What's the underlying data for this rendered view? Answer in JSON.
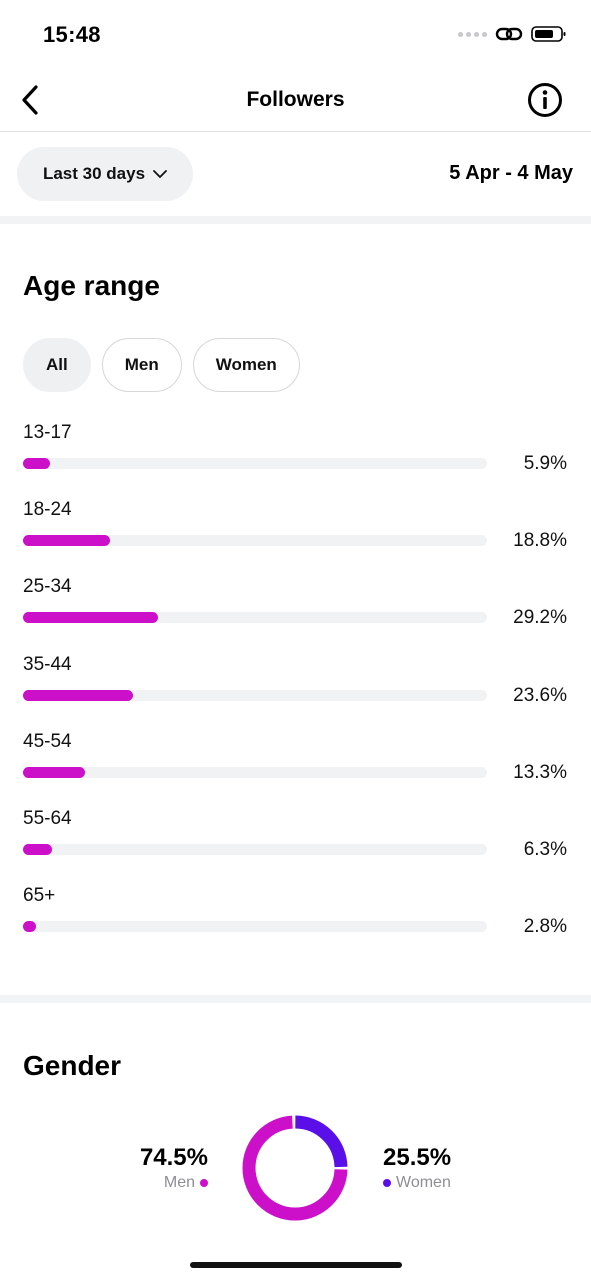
{
  "status_bar": {
    "time": "15:48"
  },
  "nav": {
    "title": "Followers"
  },
  "filters": {
    "period_label": "Last 30 days",
    "date_range": "5 Apr - 4 May"
  },
  "age_section": {
    "title": "Age range",
    "chips": [
      "All",
      "Men",
      "Women"
    ],
    "active_chip": "All",
    "rows": [
      {
        "label": "13-17",
        "value": "5.9%",
        "percent": 5.9
      },
      {
        "label": "18-24",
        "value": "18.8%",
        "percent": 18.8
      },
      {
        "label": "25-34",
        "value": "29.2%",
        "percent": 29.2
      },
      {
        "label": "35-44",
        "value": "23.6%",
        "percent": 23.6
      },
      {
        "label": "45-54",
        "value": "13.3%",
        "percent": 13.3
      },
      {
        "label": "55-64",
        "value": "6.3%",
        "percent": 6.3
      },
      {
        "label": "65+",
        "value": "2.8%",
        "percent": 2.8
      }
    ]
  },
  "gender_section": {
    "title": "Gender",
    "men": {
      "value": "74.5%",
      "label": "Men",
      "percent": 74.5
    },
    "women": {
      "value": "25.5%",
      "label": "Women",
      "percent": 25.5
    }
  },
  "colors": {
    "accent_magenta": "#cc0fc9",
    "accent_purple": "#5b0fe8",
    "track": "#f1f2f4"
  },
  "icons": {
    "back": "chevron-left-icon",
    "info": "info-icon",
    "dropdown": "chevron-down-icon",
    "link": "link-icon",
    "battery": "battery-icon"
  }
}
